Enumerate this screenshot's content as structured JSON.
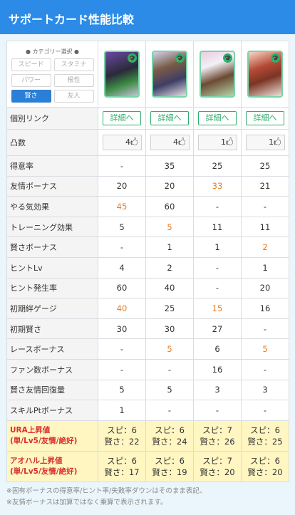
{
  "header": {
    "title": "サポートカード性能比較"
  },
  "category": {
    "title": "● カテゴリー選択 ●",
    "buttons": [
      "スピード",
      "スタミナ",
      "パワー",
      "根性",
      "賢さ",
      "友人"
    ],
    "selected": "賢さ"
  },
  "cards": [
    {
      "detail_label": "詳細へ",
      "break_count": "4",
      "badge_icon": "graduation-cap-icon"
    },
    {
      "detail_label": "詳細へ",
      "break_count": "4",
      "badge_icon": "graduation-cap-icon"
    },
    {
      "detail_label": "詳細へ",
      "break_count": "1",
      "badge_icon": "graduation-cap-icon"
    },
    {
      "detail_label": "詳細へ",
      "break_count": "1",
      "badge_icon": "graduation-cap-icon"
    }
  ],
  "labels": {
    "link": "個別リンク",
    "break": "凸数",
    "break_icon": "hand-icon"
  },
  "stats": [
    {
      "label": "得意率",
      "values": [
        "-",
        "35",
        "25",
        "25"
      ],
      "highlight": [
        false,
        false,
        false,
        false
      ]
    },
    {
      "label": "友情ボーナス",
      "values": [
        "20",
        "20",
        "33",
        "21"
      ],
      "highlight": [
        false,
        false,
        true,
        false
      ]
    },
    {
      "label": "やる気効果",
      "values": [
        "45",
        "60",
        "-",
        "-"
      ],
      "highlight": [
        true,
        false,
        false,
        false
      ]
    },
    {
      "label": "トレーニング効果",
      "values": [
        "5",
        "5",
        "11",
        "11"
      ],
      "highlight": [
        false,
        true,
        false,
        false
      ]
    },
    {
      "label": "賢さボーナス",
      "values": [
        "-",
        "1",
        "1",
        "2"
      ],
      "highlight": [
        false,
        false,
        false,
        true
      ]
    },
    {
      "label": "ヒントLv",
      "values": [
        "4",
        "2",
        "-",
        "1"
      ],
      "highlight": [
        false,
        false,
        false,
        false
      ]
    },
    {
      "label": "ヒント発生率",
      "values": [
        "60",
        "40",
        "-",
        "20"
      ],
      "highlight": [
        false,
        false,
        false,
        false
      ]
    },
    {
      "label": "初期絆ゲージ",
      "values": [
        "40",
        "25",
        "15",
        "16"
      ],
      "highlight": [
        true,
        false,
        true,
        false
      ]
    },
    {
      "label": "初期賢さ",
      "values": [
        "30",
        "30",
        "27",
        "-"
      ],
      "highlight": [
        false,
        false,
        false,
        false
      ]
    },
    {
      "label": "レースボーナス",
      "values": [
        "-",
        "5",
        "6",
        "5"
      ],
      "highlight": [
        false,
        true,
        false,
        true
      ]
    },
    {
      "label": "ファン数ボーナス",
      "values": [
        "-",
        "-",
        "16",
        "-"
      ],
      "highlight": [
        false,
        false,
        false,
        false
      ]
    },
    {
      "label": "賢さ友情回復量",
      "values": [
        "5",
        "5",
        "3",
        "3"
      ],
      "highlight": [
        false,
        false,
        false,
        false
      ]
    },
    {
      "label": "スキルPtボーナス",
      "values": [
        "1",
        "-",
        "-",
        "-"
      ],
      "highlight": [
        false,
        false,
        false,
        false
      ]
    }
  ],
  "ura": {
    "label1": "URA上昇値",
    "label2": "(単/Lv5/友情/絶好)",
    "line1": [
      "スピ：6",
      "スピ：6",
      "スピ：7",
      "スピ：6"
    ],
    "line2": [
      "賢さ：22",
      "賢さ：24",
      "賢さ：26",
      "賢さ：25"
    ]
  },
  "aoharu": {
    "label1": "アオハル上昇値",
    "label2": "(単/Lv5/友情/絶好)",
    "line1": [
      "スピ：6",
      "スピ：6",
      "スピ：7",
      "スピ：6"
    ],
    "line2": [
      "賢さ：17",
      "賢さ：19",
      "賢さ：20",
      "賢さ：20"
    ]
  },
  "footnotes": [
    "※固有ボーナスの得意率/ヒント率/失敗率ダウンはそのまま表記、",
    "※友情ボーナスは加算ではなく乗算で表示されます。"
  ],
  "colors": {
    "header": "#2b8be6",
    "highlight": "#ec7b1e",
    "accent_green": "#2dae6b",
    "gold_row": "#fff6c2"
  }
}
